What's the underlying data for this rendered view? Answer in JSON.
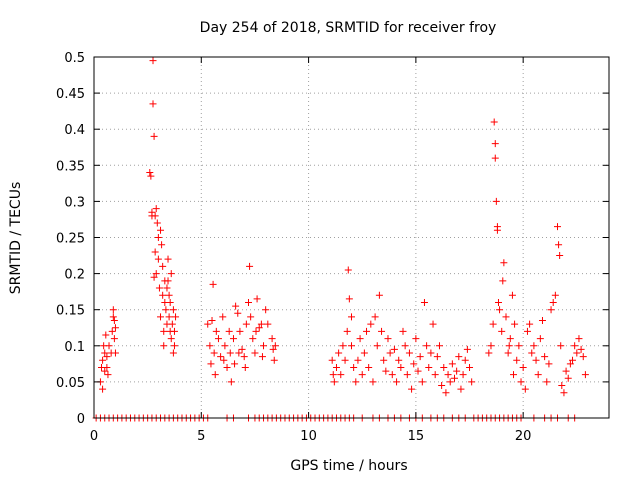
{
  "chart_data": {
    "type": "scatter",
    "title": "Day 254 of 2018, SRMTID for receiver froy",
    "xlabel": "GPS time / hours",
    "ylabel": "SRMTID / TECUs",
    "xlim": [
      0,
      24
    ],
    "ylim": [
      0,
      0.5
    ],
    "x_ticks": [
      0,
      5,
      10,
      15,
      20
    ],
    "x_tick_labels": [
      "0",
      "5",
      "10",
      "15",
      "20"
    ],
    "y_ticks": [
      0,
      0.05,
      0.1,
      0.15,
      0.2,
      0.25,
      0.3,
      0.35,
      0.4,
      0.45,
      0.5
    ],
    "y_tick_labels": [
      "0",
      "0.05",
      "0.1",
      "0.15",
      "0.2",
      "0.25",
      "0.3",
      "0.35",
      "0.4",
      "0.45",
      "0.5"
    ],
    "grid": true,
    "marker": "plus",
    "color": "#ff0000",
    "series": [
      {
        "name": "SRMTID",
        "points": [
          [
            0.3,
            0.05
          ],
          [
            0.35,
            0.07
          ],
          [
            0.4,
            0.08
          ],
          [
            0.4,
            0.04
          ],
          [
            0.45,
            0.1
          ],
          [
            0.5,
            0.065
          ],
          [
            0.5,
            0.09
          ],
          [
            0.55,
            0.115
          ],
          [
            0.6,
            0.085
          ],
          [
            0.6,
            0.07
          ],
          [
            0.65,
            0.06
          ],
          [
            0.7,
            0.1
          ],
          [
            0.8,
            0.09
          ],
          [
            0.85,
            0.12
          ],
          [
            0.9,
            0.14
          ],
          [
            0.9,
            0.15
          ],
          [
            0.95,
            0.11
          ],
          [
            0.95,
            0.135
          ],
          [
            1.0,
            0.09
          ],
          [
            1.0,
            0.125
          ],
          [
            2.6,
            0.34
          ],
          [
            2.65,
            0.335
          ],
          [
            2.7,
            0.28
          ],
          [
            2.7,
            0.285
          ],
          [
            2.75,
            0.495
          ],
          [
            2.75,
            0.435
          ],
          [
            2.8,
            0.39
          ],
          [
            2.8,
            0.195
          ],
          [
            2.85,
            0.28
          ],
          [
            2.85,
            0.23
          ],
          [
            2.9,
            0.29
          ],
          [
            2.9,
            0.2
          ],
          [
            2.95,
            0.27
          ],
          [
            3.0,
            0.25
          ],
          [
            3.0,
            0.22
          ],
          [
            3.05,
            0.18
          ],
          [
            3.1,
            0.26
          ],
          [
            3.1,
            0.14
          ],
          [
            3.15,
            0.24
          ],
          [
            3.2,
            0.21
          ],
          [
            3.2,
            0.17
          ],
          [
            3.25,
            0.1
          ],
          [
            3.25,
            0.12
          ],
          [
            3.3,
            0.19
          ],
          [
            3.3,
            0.16
          ],
          [
            3.35,
            0.15
          ],
          [
            3.4,
            0.18
          ],
          [
            3.4,
            0.13
          ],
          [
            3.45,
            0.22
          ],
          [
            3.45,
            0.19
          ],
          [
            3.5,
            0.17
          ],
          [
            3.5,
            0.14
          ],
          [
            3.55,
            0.12
          ],
          [
            3.55,
            0.16
          ],
          [
            3.6,
            0.2
          ],
          [
            3.6,
            0.11
          ],
          [
            3.65,
            0.13
          ],
          [
            3.7,
            0.09
          ],
          [
            3.7,
            0.15
          ],
          [
            3.75,
            0.1
          ],
          [
            3.75,
            0.12
          ],
          [
            3.8,
            0.14
          ],
          [
            5.3,
            0.13
          ],
          [
            5.4,
            0.1
          ],
          [
            5.45,
            0.075
          ],
          [
            5.5,
            0.135
          ],
          [
            5.55,
            0.185
          ],
          [
            5.6,
            0.09
          ],
          [
            5.65,
            0.06
          ],
          [
            5.7,
            0.12
          ],
          [
            5.8,
            0.11
          ],
          [
            5.9,
            0.085
          ],
          [
            6.0,
            0.14
          ],
          [
            6.05,
            0.08
          ],
          [
            6.1,
            0.1
          ],
          [
            6.2,
            0.07
          ],
          [
            6.3,
            0.12
          ],
          [
            6.35,
            0.09
          ],
          [
            6.4,
            0.05
          ],
          [
            6.5,
            0.11
          ],
          [
            6.55,
            0.075
          ],
          [
            6.6,
            0.155
          ],
          [
            6.7,
            0.145
          ],
          [
            6.75,
            0.09
          ],
          [
            6.8,
            0.12
          ],
          [
            6.9,
            0.095
          ],
          [
            7.0,
            0.085
          ],
          [
            7.05,
            0.07
          ],
          [
            7.1,
            0.13
          ],
          [
            7.2,
            0.16
          ],
          [
            7.25,
            0.21
          ],
          [
            7.3,
            0.14
          ],
          [
            7.4,
            0.11
          ],
          [
            7.5,
            0.09
          ],
          [
            7.55,
            0.12
          ],
          [
            7.6,
            0.165
          ],
          [
            7.7,
            0.125
          ],
          [
            7.8,
            0.13
          ],
          [
            7.85,
            0.085
          ],
          [
            7.9,
            0.1
          ],
          [
            8.0,
            0.15
          ],
          [
            8.1,
            0.13
          ],
          [
            8.3,
            0.11
          ],
          [
            8.35,
            0.095
          ],
          [
            8.4,
            0.08
          ],
          [
            8.45,
            0.1
          ],
          [
            11.1,
            0.08
          ],
          [
            11.15,
            0.06
          ],
          [
            11.2,
            0.05
          ],
          [
            11.3,
            0.07
          ],
          [
            11.4,
            0.09
          ],
          [
            11.5,
            0.06
          ],
          [
            11.6,
            0.1
          ],
          [
            11.7,
            0.08
          ],
          [
            11.8,
            0.12
          ],
          [
            11.85,
            0.205
          ],
          [
            11.9,
            0.165
          ],
          [
            12.0,
            0.14
          ],
          [
            12.0,
            0.1
          ],
          [
            12.1,
            0.07
          ],
          [
            12.2,
            0.05
          ],
          [
            12.3,
            0.08
          ],
          [
            12.4,
            0.11
          ],
          [
            12.5,
            0.06
          ],
          [
            12.6,
            0.09
          ],
          [
            12.7,
            0.12
          ],
          [
            12.8,
            0.07
          ],
          [
            12.9,
            0.13
          ],
          [
            13.0,
            0.05
          ],
          [
            13.1,
            0.14
          ],
          [
            13.2,
            0.1
          ],
          [
            13.3,
            0.17
          ],
          [
            13.4,
            0.12
          ],
          [
            13.5,
            0.08
          ],
          [
            13.6,
            0.065
          ],
          [
            13.7,
            0.11
          ],
          [
            13.8,
            0.09
          ],
          [
            13.9,
            0.06
          ],
          [
            14.0,
            0.095
          ],
          [
            14.1,
            0.05
          ],
          [
            14.2,
            0.08
          ],
          [
            14.3,
            0.07
          ],
          [
            14.4,
            0.12
          ],
          [
            14.5,
            0.1
          ],
          [
            14.6,
            0.06
          ],
          [
            14.7,
            0.09
          ],
          [
            14.8,
            0.04
          ],
          [
            14.9,
            0.075
          ],
          [
            15.0,
            0.11
          ],
          [
            15.1,
            0.065
          ],
          [
            15.2,
            0.085
          ],
          [
            15.3,
            0.05
          ],
          [
            15.4,
            0.16
          ],
          [
            15.5,
            0.1
          ],
          [
            15.6,
            0.07
          ],
          [
            15.7,
            0.09
          ],
          [
            15.8,
            0.13
          ],
          [
            15.9,
            0.06
          ],
          [
            16.0,
            0.085
          ],
          [
            16.1,
            0.1
          ],
          [
            16.2,
            0.045
          ],
          [
            16.3,
            0.07
          ],
          [
            16.4,
            0.035
          ],
          [
            16.5,
            0.06
          ],
          [
            16.6,
            0.05
          ],
          [
            16.7,
            0.075
          ],
          [
            16.8,
            0.055
          ],
          [
            16.9,
            0.065
          ],
          [
            17.0,
            0.085
          ],
          [
            17.1,
            0.04
          ],
          [
            17.2,
            0.06
          ],
          [
            17.3,
            0.08
          ],
          [
            17.4,
            0.095
          ],
          [
            17.5,
            0.07
          ],
          [
            17.6,
            0.05
          ],
          [
            18.4,
            0.09
          ],
          [
            18.5,
            0.1
          ],
          [
            18.6,
            0.13
          ],
          [
            18.65,
            0.41
          ],
          [
            18.7,
            0.38
          ],
          [
            18.7,
            0.36
          ],
          [
            18.75,
            0.3
          ],
          [
            18.8,
            0.265
          ],
          [
            18.8,
            0.26
          ],
          [
            18.85,
            0.16
          ],
          [
            18.9,
            0.15
          ],
          [
            19.0,
            0.12
          ],
          [
            19.05,
            0.19
          ],
          [
            19.1,
            0.215
          ],
          [
            19.2,
            0.14
          ],
          [
            19.3,
            0.09
          ],
          [
            19.35,
            0.1
          ],
          [
            19.4,
            0.11
          ],
          [
            19.5,
            0.17
          ],
          [
            19.55,
            0.06
          ],
          [
            19.6,
            0.13
          ],
          [
            19.7,
            0.08
          ],
          [
            19.8,
            0.1
          ],
          [
            19.9,
            0.05
          ],
          [
            20.0,
            0.07
          ],
          [
            20.1,
            0.04
          ],
          [
            20.2,
            0.12
          ],
          [
            20.3,
            0.13
          ],
          [
            20.4,
            0.09
          ],
          [
            20.5,
            0.1
          ],
          [
            20.6,
            0.08
          ],
          [
            20.7,
            0.06
          ],
          [
            20.8,
            0.11
          ],
          [
            20.9,
            0.135
          ],
          [
            21.0,
            0.085
          ],
          [
            21.1,
            0.05
          ],
          [
            21.2,
            0.075
          ],
          [
            21.3,
            0.15
          ],
          [
            21.4,
            0.16
          ],
          [
            21.5,
            0.17
          ],
          [
            21.6,
            0.265
          ],
          [
            21.65,
            0.24
          ],
          [
            21.7,
            0.225
          ],
          [
            21.75,
            0.1
          ],
          [
            21.8,
            0.045
          ],
          [
            21.9,
            0.035
          ],
          [
            22.0,
            0.065
          ],
          [
            22.1,
            0.055
          ],
          [
            22.2,
            0.075
          ],
          [
            22.3,
            0.08
          ],
          [
            22.4,
            0.1
          ],
          [
            22.5,
            0.09
          ],
          [
            22.6,
            0.11
          ],
          [
            22.7,
            0.095
          ],
          [
            22.8,
            0.085
          ],
          [
            22.9,
            0.06
          ]
        ],
        "zero_points_x": [
          0.1,
          0.3,
          0.5,
          0.7,
          0.9,
          1.1,
          1.3,
          1.5,
          1.7,
          1.9,
          2.1,
          2.3,
          2.5,
          2.7,
          2.9,
          3.1,
          3.3,
          3.5,
          3.7,
          3.9,
          4.1,
          4.3,
          4.5,
          4.7,
          4.9,
          5.1,
          5.3,
          6.2,
          6.5,
          7.2,
          7.5,
          7.7,
          7.9,
          8.1,
          8.3,
          8.5,
          8.7,
          8.9,
          9.1,
          9.3,
          9.5,
          9.7,
          9.9,
          10.1,
          10.3,
          10.5,
          10.7,
          10.9,
          11.1,
          11.3,
          11.5,
          11.7,
          11.9,
          12.1,
          12.5,
          13.0,
          13.3,
          13.7,
          14.0,
          14.3,
          14.7,
          15.0,
          15.3,
          15.7,
          16.0,
          16.3,
          16.7,
          17.0,
          17.3,
          17.7,
          17.9,
          18.1,
          18.3,
          18.5,
          18.7,
          18.9,
          19.1,
          19.3,
          19.5,
          19.7,
          19.9,
          20.5,
          21.0,
          21.3,
          21.6,
          22.1,
          22.4
        ]
      }
    ]
  }
}
